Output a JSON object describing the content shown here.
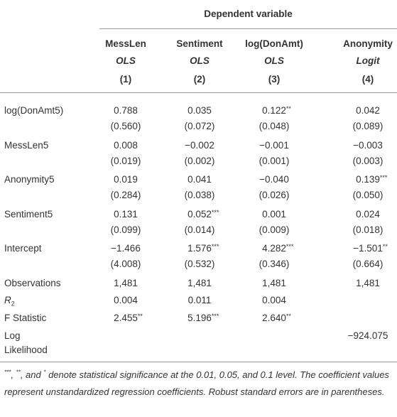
{
  "header": {
    "title": "Dependent variable",
    "columns": [
      {
        "name": "MessLen",
        "method": "OLS",
        "number": "(1)"
      },
      {
        "name": "Sentiment",
        "method": "OLS",
        "number": "(2)"
      },
      {
        "name": "log(DonAmt)",
        "method": "OLS",
        "number": "(3)"
      },
      {
        "name": "Anonymity",
        "method": "Logit",
        "number": "(4)"
      }
    ]
  },
  "table": {
    "rows": [
      {
        "label": "log(DonAmt5)",
        "cells": [
          {
            "v": "0.788"
          },
          {
            "v": "0.035"
          },
          {
            "v": "0.122",
            "s": "**"
          },
          {
            "v": "0.042"
          }
        ],
        "se": [
          "(0.560)",
          "(0.072)",
          "(0.048)",
          "(0.089)"
        ]
      },
      {
        "label": "MessLen5",
        "cells": [
          {
            "v": "0.008"
          },
          {
            "v": "−0.002"
          },
          {
            "v": "−0.001"
          },
          {
            "v": "−0.003"
          }
        ],
        "se": [
          "(0.019)",
          "(0.002)",
          "(0.001)",
          "(0.003)"
        ]
      },
      {
        "label": "Anonymity5",
        "cells": [
          {
            "v": "0.019"
          },
          {
            "v": "0.041"
          },
          {
            "v": "−0.040"
          },
          {
            "v": "0.139",
            "s": "***"
          }
        ],
        "se": [
          "(0.284)",
          "(0.038)",
          "(0.026)",
          "(0.050)"
        ]
      },
      {
        "label": "Sentiment5",
        "cells": [
          {
            "v": "0.131"
          },
          {
            "v": "0.052",
            "s": "***"
          },
          {
            "v": "0.001"
          },
          {
            "v": "0.024"
          }
        ],
        "se": [
          "(0.099)",
          "(0.014)",
          "(0.009)",
          "(0.018)"
        ]
      },
      {
        "label": "Intercept",
        "cells": [
          {
            "v": "−1.466"
          },
          {
            "v": "1.576",
            "s": "***"
          },
          {
            "v": "4.282",
            "s": "***"
          },
          {
            "v": "−1.501",
            "s": "**"
          }
        ],
        "se": [
          "(4.008)",
          "(0.532)",
          "(0.346)",
          "(0.664)"
        ]
      },
      {
        "label": "Observations",
        "cells": [
          {
            "v": "1,481"
          },
          {
            "v": "1,481"
          },
          {
            "v": "1,481"
          },
          {
            "v": "1,481"
          }
        ]
      },
      {
        "label": "R",
        "sub": "2",
        "cells": [
          {
            "v": "0.004"
          },
          {
            "v": "0.011"
          },
          {
            "v": "0.004"
          },
          null
        ]
      },
      {
        "label": "F Statistic",
        "cells": [
          {
            "v": "2.455",
            "s": "**"
          },
          {
            "v": "5.196",
            "s": "***"
          },
          {
            "v": "2.640",
            "s": "**"
          },
          null
        ]
      },
      {
        "label": "Log Likelihood",
        "cells": [
          null,
          null,
          null,
          {
            "v": "−924.075"
          }
        ]
      }
    ]
  },
  "footnote": [
    "***",
    ", ",
    "**",
    ", and ",
    "*",
    " denote statistical significance at the 0.01, 0.05, and 0.1 level. The coefficient values represent unstandardized regression coefficients. Robust standard errors are in parentheses."
  ]
}
